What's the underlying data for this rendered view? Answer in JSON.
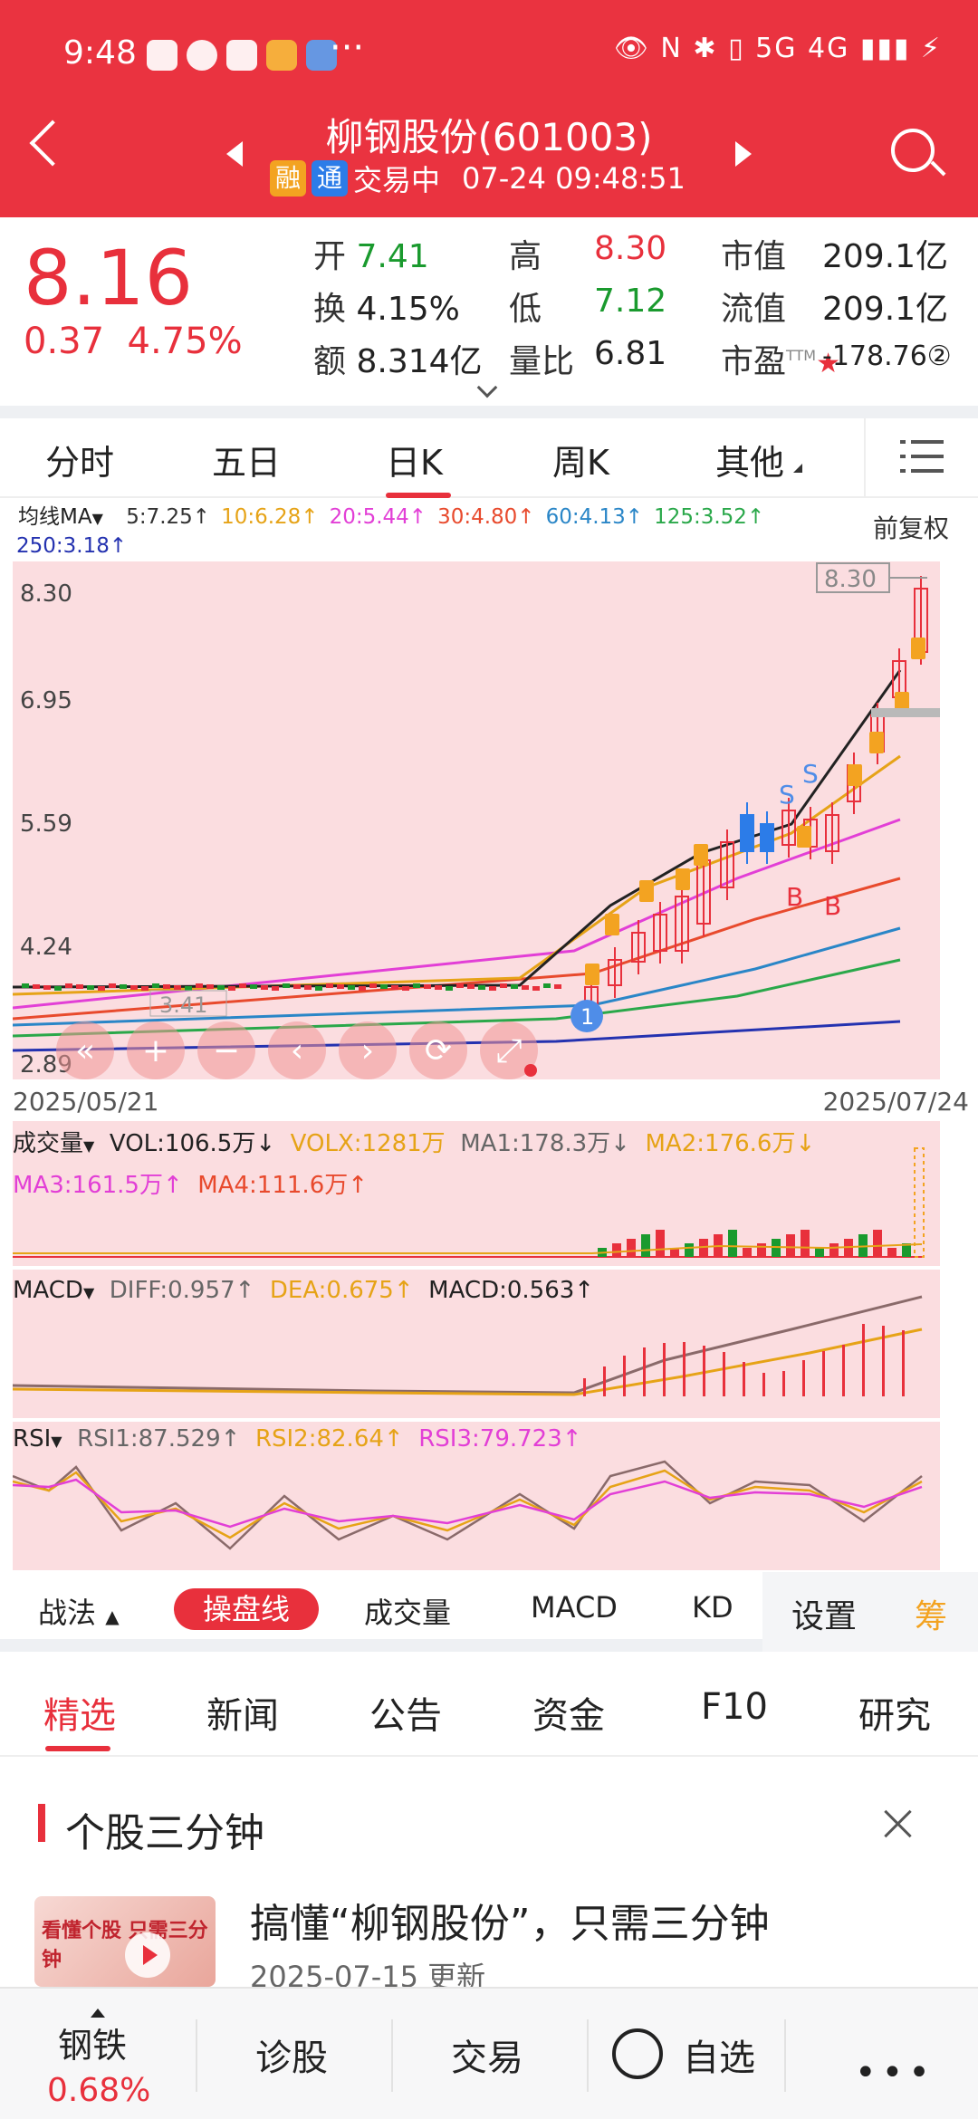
{
  "statusbar": {
    "time": "9:48",
    "more": "···",
    "right": "👁 N ✱ ▯ 5G 4G ▮▮▮ ⚡"
  },
  "header": {
    "name": "柳钢股份(601003)",
    "tag1": "融",
    "tag2": "通",
    "status": "交易中",
    "datetime": "07-24 09:48:51"
  },
  "quote": {
    "price": "8.16",
    "change": "0.37",
    "change_pct": "4.75%",
    "open_label": "开",
    "open": "7.41",
    "turnover_label": "换",
    "turnover": "4.15%",
    "amount_label": "额",
    "amount": "8.314亿",
    "high_label": "高",
    "high": "8.30",
    "low_label": "低",
    "low": "7.12",
    "vr_label": "量比",
    "vr": "6.81",
    "mcap_label": "市值",
    "mcap": "209.1亿",
    "float_label": "流值",
    "float": "209.1亿",
    "pe_label": "市盈",
    "pe_sup": "TTM",
    "pe": "-178.76②"
  },
  "ktabs": [
    "分时",
    "五日",
    "日K",
    "周K",
    "其他"
  ],
  "ma": {
    "label": "均线MA",
    "items": [
      {
        "t": "5:7.25↑",
        "c": "#333333"
      },
      {
        "t": "10:6.28↑",
        "c": "#e6a317"
      },
      {
        "t": "20:5.44↑",
        "c": "#e23fd6"
      },
      {
        "t": "30:4.80↑",
        "c": "#e84a2d"
      },
      {
        "t": "60:4.13↑",
        "c": "#2a86c7"
      },
      {
        "t": "125:3.52↑",
        "c": "#2aa84a"
      },
      {
        "t": "250:3.18↑",
        "c": "#2432b0"
      }
    ],
    "fuquan": "前复权"
  },
  "kchart": {
    "y_ticks": [
      "8.30",
      "6.95",
      "5.59",
      "4.24",
      "2.89"
    ],
    "high_mark": "8.30",
    "low_mark": "3.41",
    "signal_s": "S",
    "signal_b": "B",
    "badge": "1",
    "date_start": "2025/05/21",
    "date_end": "2025/07/24"
  },
  "vol": {
    "label": "成交量",
    "vol": "VOL:106.5万↓",
    "volx": "VOLX:1281万",
    "ma1": "MA1:178.3万↓",
    "ma2": "MA2:176.6万↓",
    "ma3": "MA3:161.5万↑",
    "ma4": "MA4:111.6万↑"
  },
  "macd": {
    "label": "MACD",
    "diff": "DIFF:0.957↑",
    "dea": "DEA:0.675↑",
    "macd": "MACD:0.563↑"
  },
  "rsi": {
    "label": "RSI",
    "rsi1": "RSI1:87.529↑",
    "rsi2": "RSI2:82.64↑",
    "rsi3": "RSI3:79.723↑"
  },
  "strat": {
    "zhanfa": "战法",
    "caopan": "操盘线",
    "vol": "成交量",
    "macd": "MACD",
    "kd": "KD",
    "settings": "设置",
    "chou": "筹"
  },
  "newstabs": [
    "精选",
    "新闻",
    "公告",
    "资金",
    "F10",
    "研究"
  ],
  "section": {
    "title": "个股三分钟",
    "thumb_text": "看懂个股 只需三分钟",
    "article_title": "搞懂“柳钢股份”，只需三分钟",
    "article_date": "2025-07-15 更新"
  },
  "bottomnav": {
    "sector": "钢铁",
    "sector_pct": "0.68%",
    "diag": "诊股",
    "trade": "交易",
    "fav": "自选",
    "more": "•••"
  }
}
